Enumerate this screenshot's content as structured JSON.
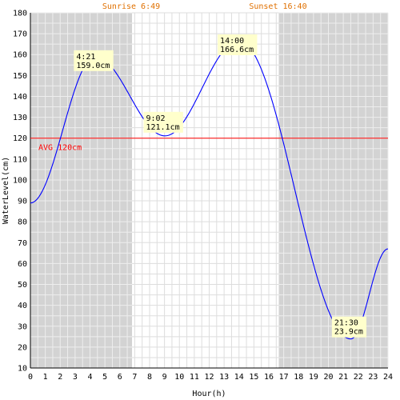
{
  "chart_data": {
    "type": "line",
    "title": "",
    "xlabel": "Hour(h)",
    "ylabel": "WaterLevel(cm)",
    "xlim": [
      0,
      24
    ],
    "ylim": [
      10,
      180
    ],
    "x_ticks": [
      0,
      1,
      2,
      3,
      4,
      5,
      6,
      7,
      8,
      9,
      10,
      11,
      12,
      13,
      14,
      15,
      16,
      17,
      18,
      19,
      20,
      21,
      22,
      23,
      24
    ],
    "y_ticks": [
      10,
      20,
      30,
      40,
      50,
      60,
      70,
      80,
      90,
      100,
      110,
      120,
      130,
      140,
      150,
      160,
      170,
      180
    ],
    "grid": true,
    "sunrise": {
      "hour": 6.82,
      "label": "Sunrise 6:49"
    },
    "sunset": {
      "hour": 16.67,
      "label": "Sunset 16:40"
    },
    "average": {
      "value": 120,
      "label": "AVG 120cm"
    },
    "series": [
      {
        "x": [
          0,
          4.35,
          9.03,
          14.0,
          21.5,
          24
        ],
        "y": [
          89,
          159.0,
          121.1,
          166.6,
          23.9,
          67
        ]
      }
    ],
    "annotations": [
      {
        "x": 4.35,
        "y": 159.0,
        "time": "4:21",
        "level": "159.0cm"
      },
      {
        "x": 9.03,
        "y": 121.1,
        "time": "9:02",
        "level": "121.1cm"
      },
      {
        "x": 14.0,
        "y": 166.6,
        "time": "14:00",
        "level": "166.6cm"
      },
      {
        "x": 21.5,
        "y": 23.9,
        "time": "21:30",
        "level": "23.9cm"
      }
    ],
    "colors": {
      "night_shade": "#d3d3d3",
      "day_bg": "#ffffff",
      "grid_on_night": "#eeeeee",
      "grid_on_day": "#dddddd",
      "curve": "#0000ff",
      "average_line": "#ff0000",
      "sun_label": "#e07000",
      "annotation_bg": "#ffffcc"
    }
  }
}
